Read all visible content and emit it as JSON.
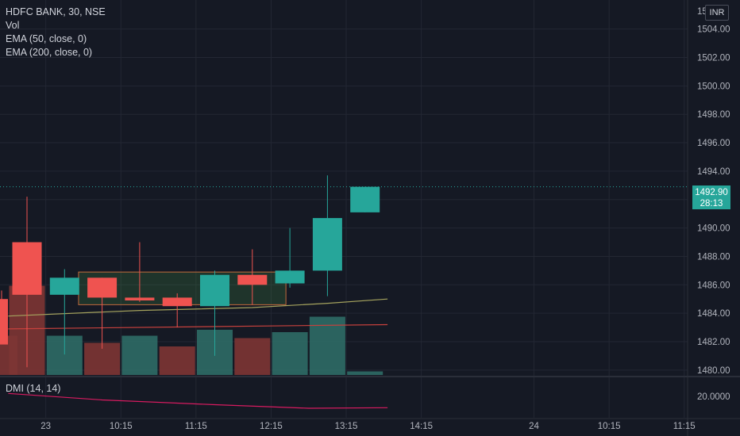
{
  "legend": {
    "symbol": "HDFC BANK, 30, NSE",
    "vol": "Vol",
    "ema50": "EMA (50, close, 0)",
    "ema200": "EMA (200, close, 0)"
  },
  "currency": "INR",
  "price_tag": {
    "price": "1492.90",
    "countdown": "28:13"
  },
  "indicator_pane": {
    "label": "DMI (14, 14)",
    "scale_label": "20.0000"
  },
  "colors": {
    "background": "#151924",
    "up": "#26a69a",
    "down": "#ef5350",
    "ema50": "#a5a35e",
    "ema200": "#c8413d",
    "dmi": "#d81b60",
    "grid": "#232733"
  },
  "chart_data": {
    "type": "candlestick",
    "symbol": "HDFC BANK",
    "interval": "30",
    "exchange": "NSE",
    "y_axis": {
      "range": [
        1479.6,
        1505.6
      ],
      "ticks": [
        "1504.00",
        "1502.00",
        "1500.00",
        "1498.00",
        "1496.00",
        "1494.00",
        "1492.00",
        "1490.00",
        "1488.00",
        "1486.00",
        "1484.00",
        "1482.00",
        "1480.00"
      ],
      "tick_values": [
        1504,
        1502,
        1500,
        1498,
        1496,
        1494,
        1492,
        1490,
        1488,
        1486,
        1484,
        1482,
        1480
      ]
    },
    "x_axis": {
      "ticks": [
        "23",
        "10:15",
        "11:15",
        "12:15",
        "13:15",
        "14:15",
        "24",
        "10:15",
        "11:15"
      ],
      "tick_slots": [
        0.5,
        2.5,
        4.5,
        6.5,
        8.5,
        10.5,
        13.5,
        15.5,
        17.5
      ]
    },
    "candles": [
      {
        "slot": -0.5,
        "open": 1485.0,
        "high": 1485.6,
        "low": 1481.9,
        "close": 1481.8
      },
      {
        "slot": 0,
        "open": 1489.0,
        "high": 1492.2,
        "low": 1480.2,
        "close": 1485.3
      },
      {
        "slot": 1,
        "open": 1485.3,
        "high": 1487.1,
        "low": 1481.1,
        "close": 1486.5
      },
      {
        "slot": 2,
        "open": 1486.5,
        "high": 1486.5,
        "low": 1481.5,
        "close": 1485.1
      },
      {
        "slot": 3,
        "open": 1485.1,
        "high": 1489.0,
        "low": 1484.8,
        "close": 1484.9
      },
      {
        "slot": 4,
        "open": 1485.1,
        "high": 1485.4,
        "low": 1483.0,
        "close": 1484.5
      },
      {
        "slot": 5,
        "open": 1484.5,
        "high": 1487.0,
        "low": 1481.0,
        "close": 1486.7
      },
      {
        "slot": 6,
        "open": 1486.7,
        "high": 1488.5,
        "low": 1484.6,
        "close": 1486.0
      },
      {
        "slot": 7,
        "open": 1486.1,
        "high": 1490.0,
        "low": 1485.8,
        "close": 1487.0
      },
      {
        "slot": 8,
        "open": 1487.0,
        "high": 1493.7,
        "low": 1485.2,
        "close": 1490.7
      },
      {
        "slot": 9,
        "open": 1491.1,
        "high": 1492.9,
        "low": 1491.1,
        "close": 1492.9
      }
    ],
    "volume": [
      {
        "slot": -0.5,
        "level": 0.33,
        "direction": "down"
      },
      {
        "slot": 0,
        "level": 0.75,
        "direction": "down"
      },
      {
        "slot": 1,
        "level": 0.33,
        "direction": "up"
      },
      {
        "slot": 2,
        "level": 0.27,
        "direction": "down"
      },
      {
        "slot": 3,
        "level": 0.33,
        "direction": "up"
      },
      {
        "slot": 4,
        "level": 0.24,
        "direction": "down"
      },
      {
        "slot": 5,
        "level": 0.38,
        "direction": "up"
      },
      {
        "slot": 6,
        "level": 0.31,
        "direction": "down"
      },
      {
        "slot": 7,
        "level": 0.36,
        "direction": "up"
      },
      {
        "slot": 8,
        "level": 0.49,
        "direction": "up"
      },
      {
        "slot": 9,
        "level": 0.03,
        "direction": "up"
      }
    ],
    "ema50": [
      {
        "slot": -0.5,
        "value": 1483.8
      },
      {
        "slot": 3,
        "value": 1484.2
      },
      {
        "slot": 6,
        "value": 1484.4
      },
      {
        "slot": 8,
        "value": 1484.7
      },
      {
        "slot": 9.6,
        "value": 1485.0
      }
    ],
    "ema200": [
      {
        "slot": -0.5,
        "value": 1482.9
      },
      {
        "slot": 9.6,
        "value": 1483.2
      }
    ],
    "range_box": {
      "slot_start": 1.5,
      "slot_end": 7.0,
      "top": 1486.9,
      "bottom": 1484.6
    },
    "last_price": 1492.9,
    "dmi": {
      "scale_value": 20.0,
      "points": [
        [
          -0.5,
          20.25
        ],
        [
          2,
          19.7
        ],
        [
          5,
          19.3
        ],
        [
          7.5,
          19.0
        ],
        [
          9.6,
          19.05
        ]
      ]
    }
  }
}
